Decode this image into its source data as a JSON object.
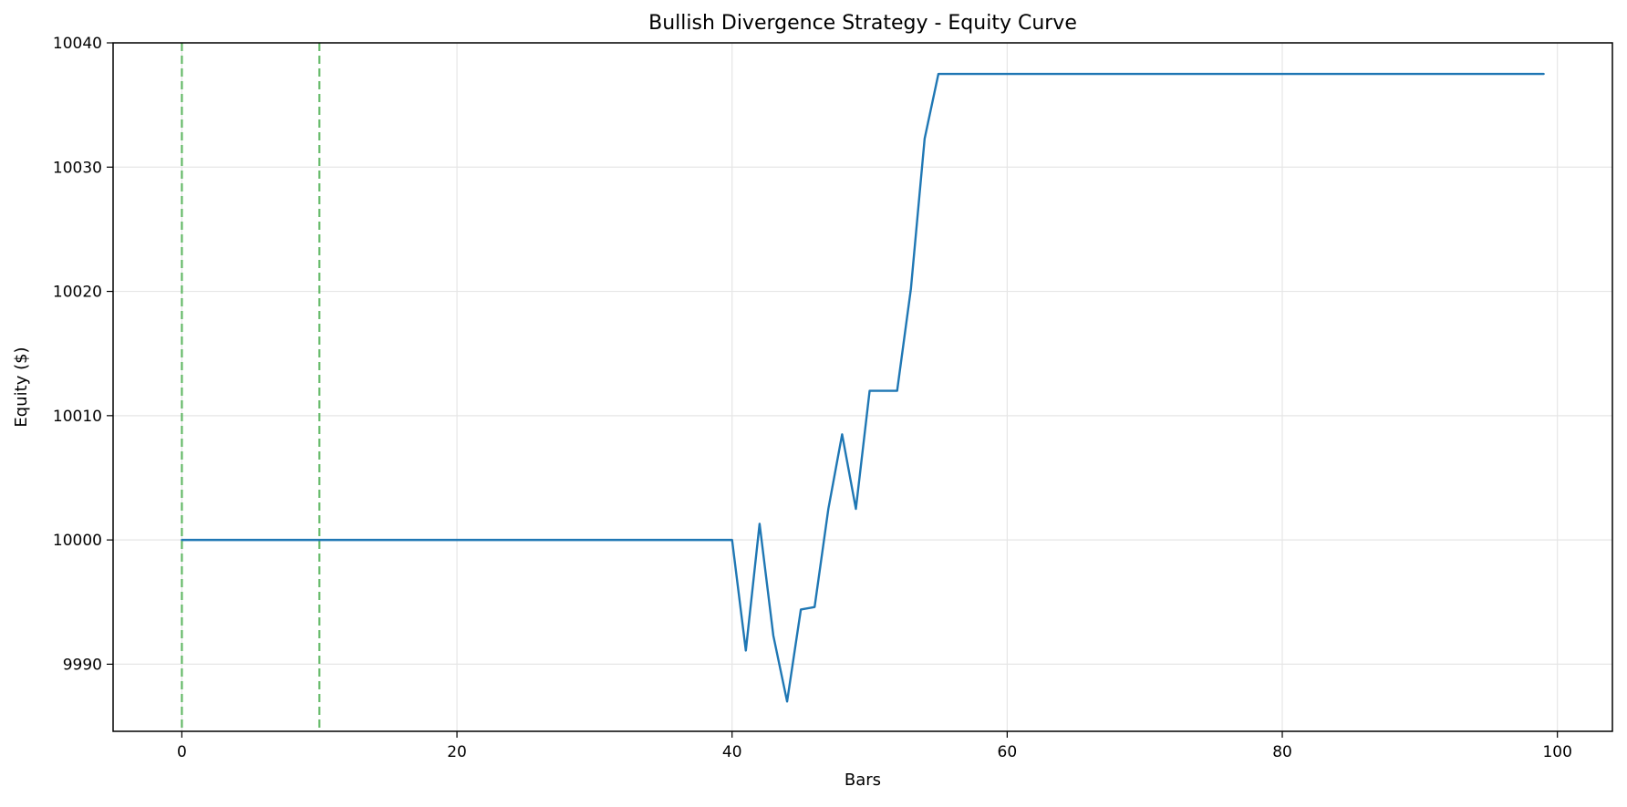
{
  "chart_data": {
    "type": "line",
    "title": "Bullish Divergence Strategy - Equity Curve",
    "xlabel": "Bars",
    "ylabel": "Equity ($)",
    "xlim": [
      -5,
      104
    ],
    "ylim": [
      9984.6,
      10040
    ],
    "xticks": [
      0,
      20,
      40,
      60,
      80,
      100
    ],
    "xtick_labels": [
      "0",
      "20",
      "40",
      "60",
      "80",
      "100"
    ],
    "yticks": [
      9990,
      10000,
      10010,
      10020,
      10030,
      10040
    ],
    "ytick_labels": [
      "9990",
      "10000",
      "10010",
      "10020",
      "10030",
      "10040"
    ],
    "grid": true,
    "legend": "none",
    "series": [
      {
        "color": "#1f77b4",
        "x": [
          0,
          40,
          41,
          42,
          43,
          44,
          45,
          46,
          47,
          48,
          49,
          50,
          51,
          52,
          53,
          54,
          55,
          99
        ],
        "y": [
          10000,
          10000,
          9991.1,
          10001.3,
          9992.3,
          9987.0,
          9994.4,
          9994.6,
          10002.5,
          10008.5,
          10002.5,
          10012.0,
          10012.0,
          10012.0,
          10020.2,
          10032.3,
          10037.5,
          10037.5
        ]
      }
    ],
    "vlines": [
      {
        "x": 0,
        "color": "#4caf50",
        "style": "dashed"
      },
      {
        "x": 10,
        "color": "#4caf50",
        "style": "dashed"
      }
    ]
  }
}
